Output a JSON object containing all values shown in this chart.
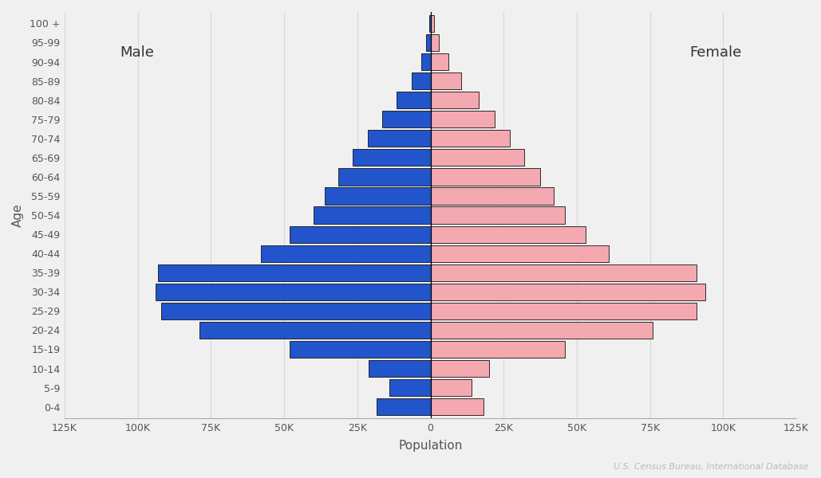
{
  "age_groups": [
    "0-4",
    "5-9",
    "10-14",
    "15-19",
    "20-24",
    "25-29",
    "30-34",
    "35-39",
    "40-44",
    "45-49",
    "50-54",
    "55-59",
    "60-64",
    "65-69",
    "70-74",
    "75-79",
    "80-84",
    "85-89",
    "90-94",
    "95-99",
    "100 +"
  ],
  "male": [
    18500,
    14000,
    21000,
    48000,
    79000,
    92000,
    94000,
    93000,
    58000,
    48000,
    40000,
    36000,
    31500,
    26500,
    21500,
    16500,
    11500,
    6500,
    3200,
    1400,
    400
  ],
  "female": [
    18000,
    14000,
    20000,
    46000,
    76000,
    91000,
    94000,
    91000,
    61000,
    53000,
    46000,
    42000,
    37500,
    32000,
    27000,
    22000,
    16500,
    10500,
    6000,
    2800,
    1200
  ],
  "male_color": "#2255cc",
  "female_color": "#f4a8b0",
  "male_edgecolor": "#111111",
  "female_edgecolor": "#111111",
  "background_color": "#f0f0f0",
  "grid_color": "#d8d8d8",
  "xlabel": "Population",
  "ylabel": "Age",
  "male_label": "Male",
  "female_label": "Female",
  "source_text": "U.S. Census Bureau, International Database",
  "xlim": 125000,
  "tick_values": [
    0,
    25000,
    50000,
    75000,
    100000,
    125000
  ],
  "tick_labels": [
    "0",
    "25K",
    "50K",
    "75K",
    "100K",
    "125K"
  ]
}
